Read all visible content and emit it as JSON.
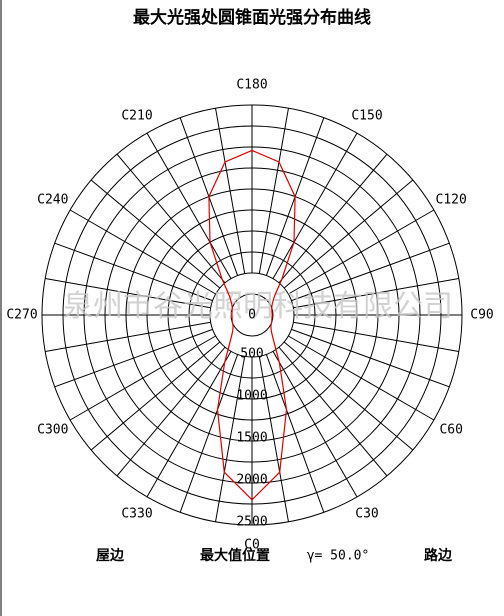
{
  "chart_data": {
    "type": "polar",
    "title": "最大光强处圆锥面光强分布曲线",
    "watermark": "泉州市谷光照明科技有限公司",
    "categories": [
      "C0",
      "C30",
      "C60",
      "C90",
      "C120",
      "C150",
      "C180",
      "C210",
      "C240",
      "C270",
      "C300",
      "C330"
    ],
    "rlim": [
      0,
      2500
    ],
    "rticks": [
      0,
      500,
      1000,
      1500,
      2000,
      2500
    ],
    "rings": [
      250,
      500,
      750,
      1000,
      1250,
      1500,
      1750,
      2000,
      2250,
      2500
    ],
    "x": [
      0,
      10,
      20,
      30,
      40,
      50,
      60,
      70,
      80,
      90,
      100,
      110,
      120,
      130,
      140,
      150,
      160,
      170,
      180,
      190,
      200,
      210,
      220,
      230,
      240,
      250,
      260,
      270,
      280,
      290,
      300,
      310,
      320,
      330,
      340,
      350,
      360
    ],
    "series": [
      {
        "color": "#e00000",
        "values": [
          2200,
          1900,
          1200,
          650,
          400,
          300,
          260,
          250,
          240,
          240,
          240,
          250,
          280,
          350,
          550,
          1000,
          1500,
          1850,
          1960,
          1850,
          1500,
          1000,
          550,
          350,
          280,
          250,
          240,
          240,
          240,
          250,
          260,
          300,
          400,
          650,
          1200,
          1900,
          2200
        ]
      }
    ],
    "annotations": [
      "屋边",
      "最大值位置",
      "γ= 50.0°",
      "路边"
    ]
  }
}
